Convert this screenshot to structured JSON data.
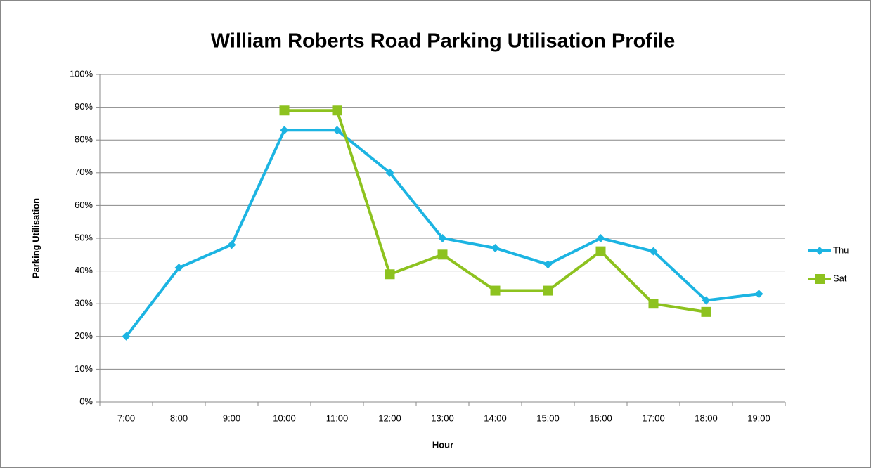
{
  "chart_data": {
    "type": "line",
    "title": "William Roberts Road Parking Utilisation Profile",
    "x_label": "Hour",
    "y_label": "Parking Utilisation",
    "categories": [
      "7:00",
      "8:00",
      "9:00",
      "10:00",
      "11:00",
      "12:00",
      "13:00",
      "14:00",
      "15:00",
      "16:00",
      "17:00",
      "18:00",
      "19:00"
    ],
    "series": [
      {
        "name": "Thu",
        "color": "#1cb4e2",
        "marker": "diamond",
        "values": [
          20,
          41,
          48,
          83,
          83,
          70,
          50,
          47,
          42,
          50,
          46,
          31,
          33
        ]
      },
      {
        "name": "Sat",
        "color": "#8dc21f",
        "marker": "square",
        "values": [
          null,
          null,
          null,
          89,
          89,
          39,
          45,
          34,
          34,
          46,
          30,
          27.5,
          null
        ]
      }
    ],
    "ylim": [
      0,
      100
    ],
    "yticks": [
      {
        "value": 0,
        "label": "0%"
      },
      {
        "value": 10,
        "label": "10%"
      },
      {
        "value": 20,
        "label": "20%"
      },
      {
        "value": 30,
        "label": "30%"
      },
      {
        "value": 40,
        "label": "40%"
      },
      {
        "value": 50,
        "label": "50%"
      },
      {
        "value": 60,
        "label": "60%"
      },
      {
        "value": 70,
        "label": "70%"
      },
      {
        "value": 80,
        "label": "80%"
      },
      {
        "value": 90,
        "label": "90%"
      },
      {
        "value": 100,
        "label": "100%"
      }
    ],
    "grid": true,
    "legend": "right"
  }
}
